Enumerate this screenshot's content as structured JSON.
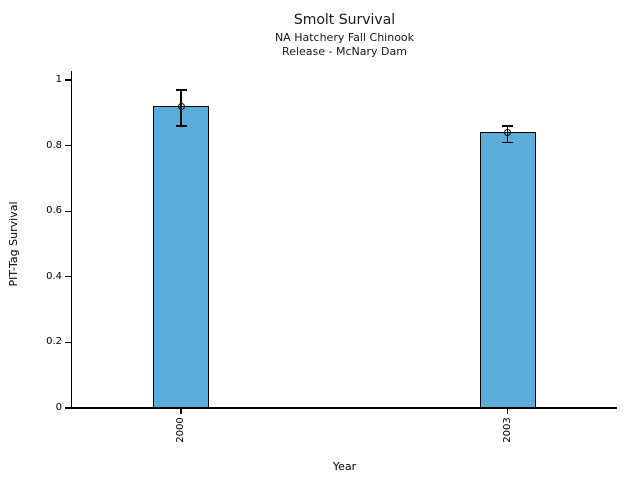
{
  "chart_data": {
    "type": "bar",
    "title": "Smolt Survival",
    "subtitle_lines": [
      "NA Hatchery Fall Chinook",
      "Release - McNary Dam"
    ],
    "xlabel": "Year",
    "ylabel": "PIT-Tag Survival",
    "categories": [
      "2000",
      "2003"
    ],
    "values": [
      0.92,
      0.84
    ],
    "error_bars": [
      {
        "low": 0.86,
        "high": 0.97
      },
      {
        "low": 0.81,
        "high": 0.86
      }
    ],
    "yticks": [
      0,
      0.2,
      0.4,
      0.6,
      0.8,
      1
    ],
    "ytick_labels": [
      "0",
      "0.2",
      "0.4",
      "0.6",
      "0.8",
      "1"
    ],
    "ylim": [
      0,
      1
    ],
    "grid": false,
    "legend": null,
    "marker": "open-circle",
    "bar_color": "#5BACD8",
    "bar_edge_color": "#000000",
    "axis_color": "#000000"
  }
}
